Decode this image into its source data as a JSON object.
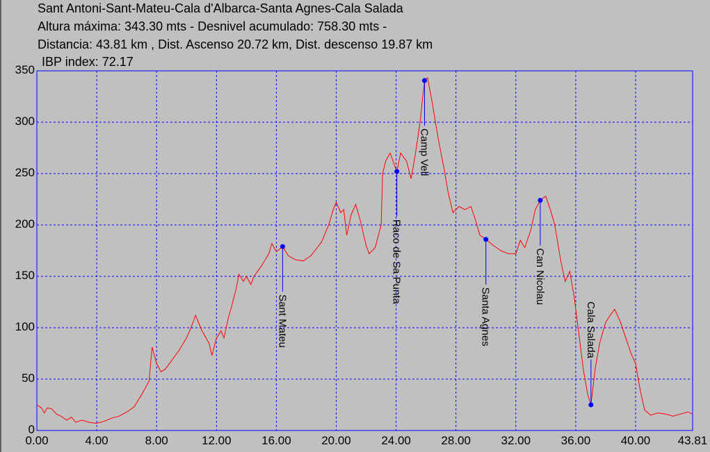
{
  "chart_data": {
    "type": "line",
    "title_lines": [
      "Sant Antoni-Sant-Mateu-Cala d'Albarca-Santa Agnes-Cala Salada",
      "Altura máxima: 343.30 mts -  Desnivel acumulado: 758.30 mts -",
      "Distancia: 43.81 km , Dist. Ascenso 20.72 km,  Dist. descenso 19.87 km",
      "IBP index: 72.17"
    ],
    "x": [
      0,
      0.3,
      0.5,
      0.7,
      1.0,
      1.3,
      1.6,
      2.0,
      2.3,
      2.6,
      3.0,
      3.5,
      4.0,
      4.5,
      5.0,
      5.5,
      6.0,
      6.5,
      7.0,
      7.5,
      7.7,
      8.0,
      8.3,
      8.6,
      9.0,
      9.5,
      10.0,
      10.3,
      10.6,
      11.0,
      11.5,
      11.7,
      12.0,
      12.3,
      12.5,
      12.8,
      13.0,
      13.3,
      13.5,
      13.8,
      14.0,
      14.3,
      14.5,
      15.0,
      15.5,
      15.7,
      16.0,
      16.42,
      16.8,
      17.3,
      17.8,
      18.3,
      19.0,
      19.5,
      19.8,
      20.0,
      20.3,
      20.5,
      20.7,
      21.0,
      21.3,
      21.6,
      22.0,
      22.2,
      22.6,
      23.0,
      23.1,
      23.3,
      23.6,
      24.05,
      24.3,
      24.7,
      25.0,
      25.3,
      25.6,
      25.9,
      26.1,
      26.4,
      26.8,
      27.2,
      27.5,
      27.8,
      28.2,
      28.6,
      29.0,
      29.3,
      29.6,
      30.0,
      30.5,
      31.0,
      31.5,
      32.0,
      32.3,
      32.6,
      33.0,
      33.3,
      33.63,
      34.0,
      34.3,
      34.6,
      35.0,
      35.3,
      35.6,
      35.9,
      36.2,
      36.5,
      36.8,
      37.02,
      37.3,
      37.6,
      38.0,
      38.3,
      38.6,
      39.0,
      39.3,
      39.7,
      40.0,
      40.3,
      40.6,
      41.0,
      41.5,
      42.0,
      42.5,
      43.0,
      43.5,
      43.81
    ],
    "series": [
      {
        "color": "#ff0000",
        "values": [
          25,
          22,
          17,
          22,
          21,
          16,
          14,
          10,
          13,
          8,
          10,
          8,
          7,
          9,
          12,
          14,
          18,
          23,
          35,
          48,
          81,
          65,
          57,
          60,
          68,
          78,
          90,
          100,
          112,
          98,
          85,
          73,
          90,
          97,
          90,
          110,
          120,
          137,
          152,
          145,
          150,
          142,
          150,
          160,
          172,
          182,
          174,
          179,
          170,
          166,
          165,
          170,
          183,
          200,
          215,
          222,
          212,
          215,
          190,
          210,
          220,
          205,
          180,
          172,
          178,
          200,
          250,
          262,
          270,
          252,
          270,
          262,
          245,
          270,
          300,
          340.5,
          343.3,
          320,
          285,
          255,
          230,
          212,
          218,
          215,
          218,
          205,
          190,
          186,
          180,
          175,
          172,
          172,
          185,
          178,
          195,
          215,
          224,
          228,
          215,
          200,
          165,
          145,
          155,
          130,
          95,
          60,
          35,
          25,
          60,
          85,
          105,
          112,
          118,
          105,
          92,
          75,
          65,
          40,
          20,
          15,
          17,
          16,
          14,
          16,
          18,
          16
        ]
      }
    ],
    "waypoints": {
      "color": "#0000ff",
      "labels": [
        "Sant Mateu",
        "Raco de Sa Punta",
        "Camp Vell",
        "Santa Agnes",
        "Can Nicolau",
        "Cala Salada"
      ],
      "x": [
        16.42,
        24.05,
        25.9,
        30.0,
        33.63,
        37.02
      ],
      "values": [
        179,
        252,
        340.5,
        186,
        224,
        25
      ]
    },
    "xlim": [
      0,
      43.81
    ],
    "ylim": [
      0,
      350
    ],
    "xticks": [
      {
        "value": 0,
        "label": "0.00"
      },
      {
        "value": 4,
        "label": "4.00"
      },
      {
        "value": 8,
        "label": "8.00"
      },
      {
        "value": 12,
        "label": "12.00"
      },
      {
        "value": 16,
        "label": "16.00"
      },
      {
        "value": 20,
        "label": "20.00"
      },
      {
        "value": 24,
        "label": "24.00"
      },
      {
        "value": 28,
        "label": "28.00"
      },
      {
        "value": 32,
        "label": "32.00"
      },
      {
        "value": 36,
        "label": "36.00"
      },
      {
        "value": 40,
        "label": "40.00"
      },
      {
        "value": 43.81,
        "label": "43.81"
      }
    ],
    "yticks": [
      0,
      50,
      100,
      150,
      200,
      250,
      300,
      350
    ],
    "grid": true
  }
}
